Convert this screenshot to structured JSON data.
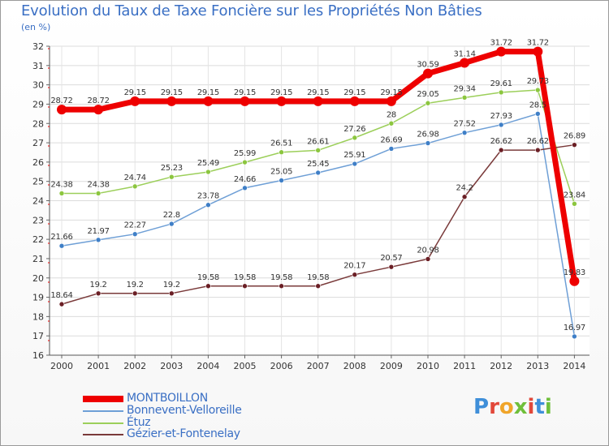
{
  "title": "Evolution du Taux de Taxe Foncière sur les Propriétés Non Bâties",
  "unit": "(en %)",
  "logo": {
    "text": "Proxiti",
    "letter_colors": [
      "#3f8fd9",
      "#e2483a",
      "#f0a52a",
      "#6fbf3a",
      "#e2483a",
      "#3f8fd9",
      "#6fbf3a"
    ]
  },
  "chart_data": {
    "type": "line",
    "title": "Evolution du Taux de Taxe Foncière sur les Propriétés Non Bâties",
    "ylabel": "(en %)",
    "xlabel": "",
    "ylim": [
      16,
      32
    ],
    "yticks": [
      "16",
      "17",
      "18",
      "19",
      "20",
      "21",
      "22",
      "23",
      "24",
      "25",
      "26",
      "27",
      "28",
      "29",
      "30",
      "31",
      "32"
    ],
    "categories": [
      "2000",
      "2001",
      "2002",
      "2003",
      "2004",
      "2005",
      "2006",
      "2007",
      "2008",
      "2009",
      "2010",
      "2011",
      "2012",
      "2013",
      "2014"
    ],
    "grid": true,
    "legend_position": "bottom-left",
    "series": [
      {
        "name": "MONTBOILLON",
        "color": "#ee0000",
        "marker": "#ee0000",
        "emphasis": true,
        "values": [
          28.72,
          28.72,
          29.15,
          29.15,
          29.15,
          29.15,
          29.15,
          29.15,
          29.15,
          29.15,
          30.59,
          31.14,
          31.72,
          31.72,
          19.83
        ],
        "labels": [
          "28.72",
          "28.72",
          "29.15",
          "29.15",
          "29.15",
          "29.15",
          "29.15",
          "29.15",
          "29.15",
          "29.15",
          "30.59",
          "31.14",
          "31.72",
          "31.72",
          "19.83"
        ]
      },
      {
        "name": "Bonnevent-Velloreille",
        "color": "#6e9fd6",
        "marker": "#3f7fc7",
        "emphasis": false,
        "values": [
          21.66,
          21.97,
          22.27,
          22.8,
          23.78,
          24.66,
          25.05,
          25.45,
          25.91,
          26.69,
          26.98,
          27.52,
          27.93,
          28.5,
          16.97
        ],
        "labels": [
          "21.66",
          "21.97",
          "22.27",
          "22.8",
          "23.78",
          "24.66",
          "25.05",
          "25.45",
          "25.91",
          "26.69",
          "26.98",
          "27.52",
          "27.93",
          "28.5",
          "16.97"
        ]
      },
      {
        "name": "Étuz",
        "color": "#9ccf5a",
        "marker": "#8cc63f",
        "emphasis": false,
        "values": [
          24.38,
          24.38,
          24.74,
          25.23,
          25.49,
          25.99,
          26.51,
          26.61,
          27.26,
          28,
          29.05,
          29.34,
          29.61,
          29.73,
          23.84
        ],
        "labels": [
          "24.38",
          "24.38",
          "24.74",
          "25.23",
          "25.49",
          "25.99",
          "26.51",
          "26.61",
          "27.26",
          "28",
          "29.05",
          "29.34",
          "29.61",
          "29.73",
          "23.84"
        ]
      },
      {
        "name": "Gézier-et-Fontenelay",
        "color": "#7a3a3a",
        "marker": "#6b1f25",
        "emphasis": false,
        "values": [
          18.64,
          19.2,
          19.2,
          19.2,
          19.58,
          19.58,
          19.58,
          19.58,
          20.17,
          20.57,
          20.98,
          24.2,
          26.62,
          26.62,
          26.89
        ],
        "labels": [
          "18.64",
          "19.2",
          "19.2",
          "19.2",
          "19.58",
          "19.58",
          "19.58",
          "19.58",
          "20.17",
          "20.57",
          "20.98",
          "24.2",
          "26.62",
          "26.62",
          "26.89"
        ]
      }
    ]
  }
}
